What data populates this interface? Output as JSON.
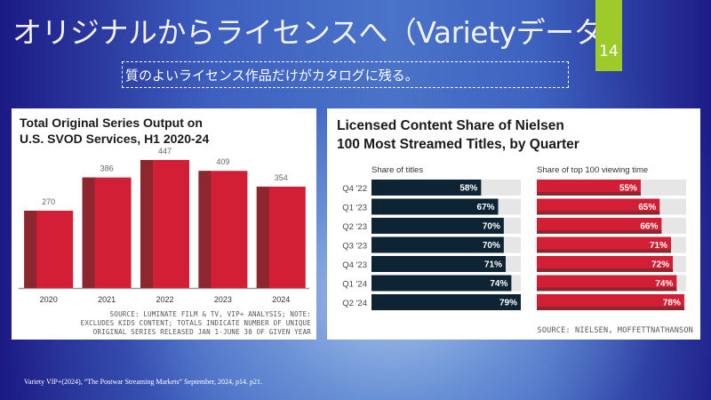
{
  "slide": {
    "title": "オリジナルからライセンスへ（Varietyデータ）",
    "page_number": "14",
    "subtitle": "質のよいライセンス作品だけがカタログに残る。",
    "footer": "Variety VIP+(2024), “The Postwar Streaming Markets” September, 2024, p14.  p21.",
    "colors": {
      "accent_green": "#9fcb2a",
      "bar_red": "#d21f35",
      "bar_red_dark": "#8e2630",
      "bar_navy": "#0c2433",
      "bar_track": "#e6e6e6"
    }
  },
  "chart_data": [
    {
      "type": "bar",
      "title": "Total Original Series Output on U.S. SVOD Services, H1 2020-24",
      "title_lines": [
        "Total Original Series Output on",
        "U.S. SVOD Services, H1 2020-24"
      ],
      "categories": [
        "2020",
        "2021",
        "2022",
        "2023",
        "2024"
      ],
      "values": [
        270,
        386,
        447,
        409,
        354
      ],
      "data_labels": [
        "270",
        "386",
        "447",
        "409",
        "354"
      ],
      "xlabel": "",
      "ylabel": "",
      "ylim": [
        0,
        480
      ],
      "grid": false,
      "source_lines": [
        "SOURCE: LUMINATE FILM & TV, VIP+ ANALYSIS; NOTE:",
        "EXCLUDES KIDS CONTENT; TOTALS INDICATE NUMBER OF UNIQUE",
        "ORIGINAL SERIES RELEASED JAN 1-JUNE 30 OF GIVEN YEAR"
      ]
    },
    {
      "type": "bar",
      "orientation": "horizontal",
      "title": "Licensed Content Share of Nielsen 100 Most Streamed Titles, by Quarter",
      "title_lines": [
        "Licensed Content Share of Nielsen",
        "100 Most Streamed Titles, by Quarter"
      ],
      "categories": [
        "Q4 '22",
        "Q1 '23",
        "Q2 '23",
        "Q3 '23",
        "Q4 '23",
        "Q1 '24",
        "Q2 '24"
      ],
      "series": [
        {
          "name": "Share of titles",
          "values": [
            58,
            67,
            70,
            70,
            71,
            74,
            79
          ],
          "labels": [
            "58%",
            "67%",
            "70%",
            "70%",
            "71%",
            "74%",
            "79%"
          ]
        },
        {
          "name": "Share of top 100 viewing time",
          "values": [
            55,
            65,
            66,
            71,
            72,
            74,
            78
          ],
          "labels": [
            "55%",
            "65%",
            "66%",
            "71%",
            "72%",
            "74%",
            "78%"
          ]
        }
      ],
      "xlim": [
        0,
        79
      ],
      "grid": false,
      "source_lines": [
        "SOURCE: NIELSEN, MOFFETTNATHANSON"
      ]
    }
  ]
}
